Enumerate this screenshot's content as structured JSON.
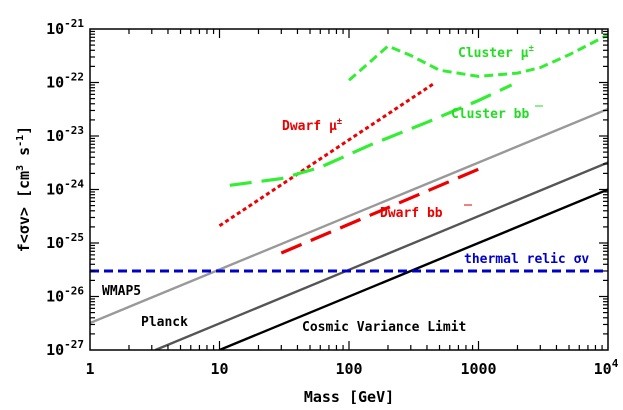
{
  "chart_data": {
    "type": "line",
    "title": "",
    "xlabel": "Mass [GeV]",
    "ylabel": "f<σv> [cm3 s-1]",
    "ylabel_parts": {
      "name": "f<σv>",
      "lbracket": "[",
      "cm": "cm",
      "cm_exp": "3",
      "s": "s",
      "s_exp": "-1",
      "rbracket": "]"
    },
    "x_scale": "log",
    "y_scale": "log",
    "xlim": [
      1,
      10000
    ],
    "ylim": [
      1e-27,
      1e-21
    ],
    "grid": false,
    "x_ticks": [
      {
        "value": 1,
        "label": "1"
      },
      {
        "value": 10,
        "label": "10"
      },
      {
        "value": 100,
        "label": "100"
      },
      {
        "value": 1000,
        "label": "1000"
      },
      {
        "value": 10000,
        "base": "10",
        "exp": "4"
      }
    ],
    "y_ticks": [
      {
        "value": 1e-27,
        "base": "10",
        "exp": "-27"
      },
      {
        "value": 1e-26,
        "base": "10",
        "exp": "-26"
      },
      {
        "value": 1e-25,
        "base": "10",
        "exp": "-25"
      },
      {
        "value": 1e-24,
        "base": "10",
        "exp": "-24"
      },
      {
        "value": 1e-23,
        "base": "10",
        "exp": "-23"
      },
      {
        "value": 1e-22,
        "base": "10",
        "exp": "-22"
      },
      {
        "value": 1e-21,
        "base": "10",
        "exp": "-21"
      }
    ],
    "series": [
      {
        "name": "WMAP5",
        "color": "#999999",
        "style": "solid",
        "x": [
          1,
          10000
        ],
        "y": [
          3.2e-27,
          3.2e-23
        ]
      },
      {
        "name": "Planck",
        "color": "#555555",
        "style": "solid",
        "x": [
          3.2,
          10000
        ],
        "y": [
          1e-27,
          3.2e-24
        ]
      },
      {
        "name": "Cosmic Variance Limit",
        "color": "#000000",
        "style": "solid",
        "x": [
          10,
          10000
        ],
        "y": [
          1e-27,
          1e-24
        ]
      },
      {
        "name": "thermal relic σv",
        "color": "#0000cc",
        "style": "dashed",
        "x": [
          1,
          10000
        ],
        "y": [
          3e-26,
          3e-26
        ]
      },
      {
        "name": "Dwarf μ±",
        "color": "#ee0000",
        "style": "dotted",
        "x": [
          10,
          450
        ],
        "y": [
          2.1e-25,
          9.5e-23
        ]
      },
      {
        "name": "Dwarf bb̄",
        "color": "#ee0000",
        "style": "long-dash",
        "x": [
          30,
          1000
        ],
        "y": [
          6.5e-26,
          2.4e-24
        ]
      },
      {
        "name": "Cluster bb̄",
        "color": "#33ee33",
        "style": "long-dash",
        "x": [
          12,
          30,
          60,
          150,
          400,
          1000,
          1800
        ],
        "y": [
          1.2e-24,
          1.6e-24,
          2.6e-24,
          7e-24,
          1.8e-23,
          4.6e-23,
          9e-23
        ]
      },
      {
        "name": "Cluster μ±",
        "color": "#33ee33",
        "style": "dashed",
        "x": [
          100,
          200,
          300,
          500,
          1000,
          2000,
          3000,
          5000,
          10000
        ],
        "y": [
          1.1e-22,
          4.8e-22,
          3.2e-22,
          1.7e-22,
          1.3e-22,
          1.5e-22,
          1.9e-22,
          3.3e-22,
          7.8e-22
        ]
      }
    ],
    "annotations": [
      {
        "id": "wmap5",
        "text": "WMAP5",
        "color": "#000000"
      },
      {
        "id": "planck",
        "text": "Planck",
        "color": "#000000"
      },
      {
        "id": "cvl",
        "text": "Cosmic Variance Limit",
        "color": "#000000"
      },
      {
        "id": "thermal",
        "text": "thermal relic σv",
        "color": "#0000cc"
      },
      {
        "id": "dwarf_mu",
        "text": "Dwarf μ",
        "sup": "±",
        "color": "#ee0000"
      },
      {
        "id": "dwarf_bb",
        "text": "Dwarf ",
        "bb": "bb",
        "color": "#ee0000"
      },
      {
        "id": "cluster_bb",
        "text": "Cluster ",
        "bb": "bb",
        "color": "#22dd22"
      },
      {
        "id": "cluster_mu",
        "text": "Cluster μ",
        "sup": "±",
        "color": "#22dd22"
      }
    ]
  }
}
